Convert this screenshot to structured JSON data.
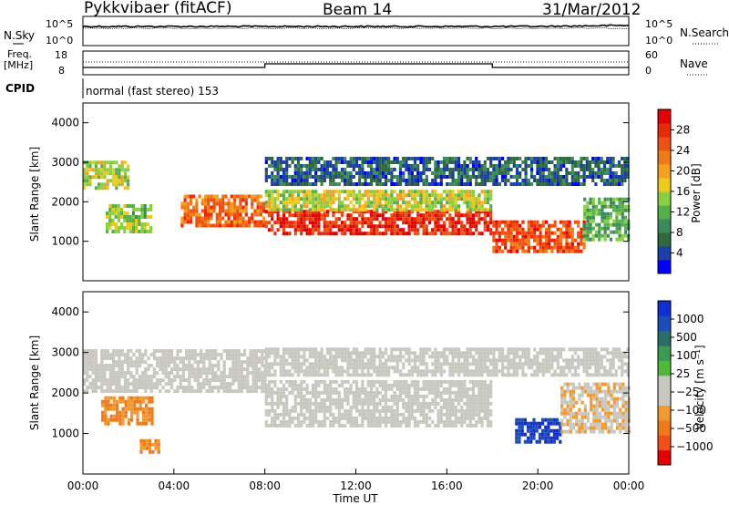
{
  "header": {
    "station": "Pykkvibaer (fitACF)",
    "beam": "Beam 14",
    "date": "31/Mar/2012"
  },
  "noise_panel": {
    "left_label": "N.Sky",
    "right_label": "N.Search",
    "left_ticks": [
      "10^5",
      "10^0"
    ],
    "right_ticks": [
      "10^5",
      "10^0"
    ]
  },
  "freq_panel": {
    "left_label_1": "Freq.",
    "left_label_2": "[MHz]",
    "right_label": "Nave",
    "left_ticks": [
      "18",
      "8"
    ],
    "right_ticks": [
      "60",
      "0"
    ]
  },
  "cpid_panel": {
    "label": "CPID",
    "text": "normal (fast stereo) 153"
  },
  "colors": {
    "power_scale": [
      "#0000ff",
      "#1b3fa8",
      "#2f6a3d",
      "#3d8a5a",
      "#55b04a",
      "#88d040",
      "#f0c818",
      "#f6a020",
      "#f07a18",
      "#ee5210",
      "#e82a08",
      "#e40000"
    ],
    "velocity_scale": [
      "#e40000",
      "#f05018",
      "#f07a18",
      "#f09a30",
      "#c8c8c0",
      "#c8c8c0",
      "#50b838",
      "#3d9a55",
      "#2a6e6a",
      "#1b4dba",
      "#1030d0"
    ],
    "ground_scatter": "#c8c8c0"
  },
  "chart_data": [
    {
      "type": "heatmap",
      "title": "Power",
      "ylabel": "Slant Range [km]",
      "ylim": [
        0,
        4500
      ],
      "y_ticks": [
        "1000",
        "2000",
        "3000",
        "4000"
      ],
      "colorbar_label": "Power [dB]",
      "colorbar_ticks": [
        "4",
        "8",
        "12",
        "16",
        "20",
        "24",
        "28"
      ],
      "scatter_bands": [
        {
          "t0": 0.0,
          "t1": 2.0,
          "r0": 2300,
          "r1": 3000,
          "level": 16
        },
        {
          "t0": 1.0,
          "t1": 3.0,
          "r0": 1200,
          "r1": 1900,
          "level": 14
        },
        {
          "t0": 4.3,
          "t1": 8.0,
          "r0": 1350,
          "r1": 2100,
          "level": 24
        },
        {
          "t0": 8.0,
          "t1": 18.0,
          "r0": 1150,
          "r1": 1750,
          "level": 28
        },
        {
          "t0": 8.0,
          "t1": 18.0,
          "r0": 1750,
          "r1": 2300,
          "level": 16
        },
        {
          "t0": 8.0,
          "t1": 24.0,
          "r0": 2400,
          "r1": 3100,
          "level": 6
        },
        {
          "t0": 18.0,
          "t1": 22.0,
          "r0": 700,
          "r1": 1500,
          "level": 26
        },
        {
          "t0": 22.0,
          "t1": 24.0,
          "r0": 1000,
          "r1": 2100,
          "level": 12
        }
      ]
    },
    {
      "type": "heatmap",
      "title": "Velocity",
      "xlabel": "Time UT",
      "ylabel": "Slant Range [km]",
      "ylim": [
        0,
        4500
      ],
      "y_ticks": [
        "1000",
        "2000",
        "3000",
        "4000"
      ],
      "x_ticks": [
        "00:00",
        "04:00",
        "08:00",
        "12:00",
        "16:00",
        "20:00",
        "00:00"
      ],
      "colorbar_label": "Velocity [m s⁻¹]",
      "colorbar_ticks": [
        "1000",
        "500",
        "100",
        "25",
        "−25",
        "−100",
        "−500",
        "−1000"
      ],
      "scatter_bands": [
        {
          "t0": 0.0,
          "t1": 8.0,
          "r0": 2000,
          "r1": 3050,
          "class": "ground"
        },
        {
          "t0": 8.0,
          "t1": 18.0,
          "r0": 1150,
          "r1": 2300,
          "class": "ground"
        },
        {
          "t0": 8.0,
          "t1": 24.0,
          "r0": 2400,
          "r1": 3100,
          "class": "ground"
        },
        {
          "t0": 0.8,
          "t1": 3.0,
          "r0": 1200,
          "r1": 1900,
          "velocity": -250
        },
        {
          "t0": 2.5,
          "t1": 3.3,
          "r0": 500,
          "r1": 800,
          "velocity": -250
        },
        {
          "t0": 19.0,
          "t1": 21.0,
          "r0": 750,
          "r1": 1350,
          "velocity": 800
        },
        {
          "t0": 21.0,
          "t1": 24.0,
          "r0": 1000,
          "r1": 2200,
          "velocity": -80
        }
      ]
    }
  ]
}
